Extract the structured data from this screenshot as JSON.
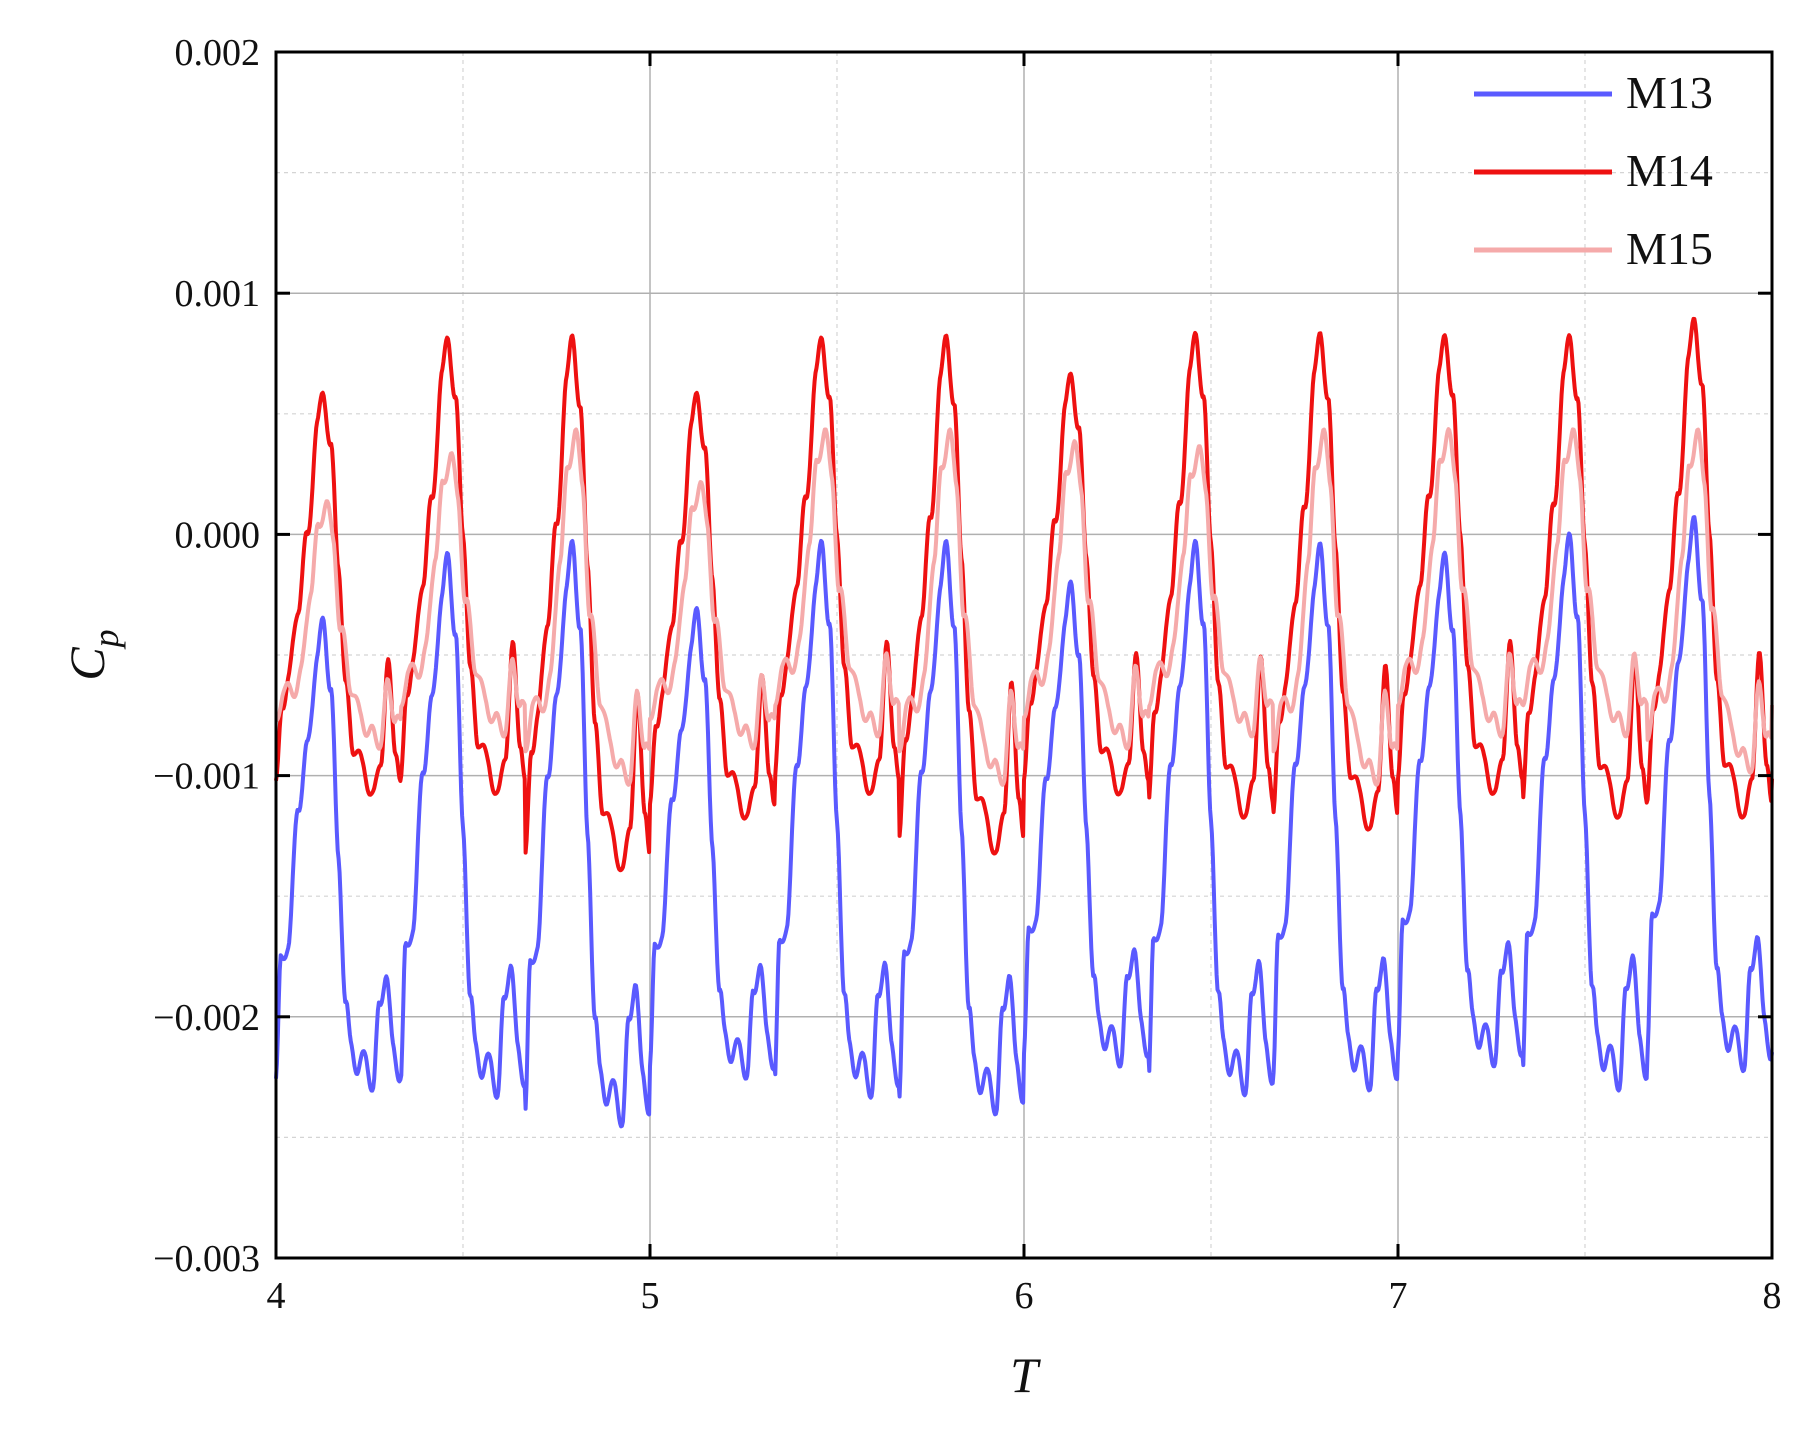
{
  "chart_data": {
    "type": "line",
    "xlabel": "T",
    "ylabel_main": "C",
    "ylabel_sub": "p",
    "xlim": [
      4,
      8
    ],
    "ylim": [
      -0.003,
      0.002
    ],
    "x_ticks": [
      4,
      5,
      6,
      7,
      8
    ],
    "x_tick_labels": [
      "4",
      "5",
      "6",
      "7",
      "8"
    ],
    "y_ticks": [
      -0.003,
      -0.002,
      -0.001,
      0.0,
      0.001,
      0.002
    ],
    "y_tick_labels": [
      "−0.003",
      "−0.002",
      "−0.001",
      "0.000",
      "0.001",
      "0.002"
    ],
    "grid": true,
    "legend_position": "top-right",
    "period": 0.3333,
    "series": [
      {
        "name": "M13",
        "color": "#5a5aff",
        "cycle_phase": [
          0.0,
          0.04,
          0.1,
          0.18,
          0.25,
          0.33,
          0.38,
          0.44,
          0.5,
          0.56,
          0.6,
          0.66,
          0.72,
          0.78,
          0.83,
          0.88,
          0.94,
          1.0
        ],
        "cycle_values": [
          -0.00225,
          -0.0017,
          -0.0016,
          -0.00095,
          -0.0007,
          -0.00025,
          -0.0001,
          -0.0004,
          -0.0012,
          -0.0019,
          -0.0021,
          -0.0022,
          -0.00215,
          -0.0023,
          -0.0019,
          -0.00175,
          -0.0021,
          -0.00225
        ],
        "peaks": [
          -0.00037,
          -0.0001,
          -5e-05,
          -0.00033,
          -5e-05,
          -5e-05,
          -0.00022,
          -5e-05,
          -6e-05,
          -0.0001,
          -2e-05,
          5e-05,
          -3e-05
        ],
        "troughs": [
          -0.0023,
          -0.00233,
          -0.00245,
          -0.00225,
          -0.00233,
          -0.0024,
          -0.0022,
          -0.00232,
          -0.0023,
          -0.0022,
          -0.0023,
          -0.00222,
          -0.0022
        ]
      },
      {
        "name": "M14",
        "color": "#ee1111",
        "cycle_phase": [
          0.0,
          0.05,
          0.1,
          0.18,
          0.25,
          0.33,
          0.38,
          0.44,
          0.5,
          0.56,
          0.62,
          0.7,
          0.78,
          0.84,
          0.9,
          0.96,
          1.0
        ],
        "cycle_values": [
          -0.00105,
          -0.00065,
          -0.00055,
          -0.0002,
          0.0001,
          0.0006,
          0.00078,
          0.0005,
          0.0,
          -0.0006,
          -0.00085,
          -0.00095,
          -0.0011,
          -0.0009,
          -0.0005,
          -0.00085,
          -0.00105
        ],
        "peaks": [
          0.0006,
          0.00083,
          0.00084,
          0.0006,
          0.00083,
          0.00084,
          0.00068,
          0.00085,
          0.00085,
          0.00084,
          0.00084,
          0.00091,
          0.00084
        ],
        "troughs": [
          -0.0011,
          -0.0011,
          -0.00142,
          -0.0012,
          -0.0011,
          -0.00135,
          -0.0011,
          -0.0012,
          -0.00125,
          -0.0011,
          -0.0012,
          -0.0012,
          -0.0011
        ]
      },
      {
        "name": "M15",
        "color": "#f5aaaa",
        "cycle_phase": [
          0.0,
          0.06,
          0.12,
          0.2,
          0.28,
          0.34,
          0.4,
          0.46,
          0.52,
          0.6,
          0.68,
          0.76,
          0.84,
          0.9,
          0.96,
          1.0
        ],
        "cycle_values": [
          -0.00075,
          -0.00055,
          -0.0006,
          -0.0005,
          -0.0001,
          0.00015,
          0.0003,
          0.0001,
          -0.0003,
          -0.00055,
          -0.0007,
          -0.00078,
          -0.0008,
          -0.00055,
          -0.0007,
          -0.00075
        ],
        "peaks": [
          0.00015,
          0.00035,
          0.00045,
          0.00023,
          0.00045,
          0.00045,
          0.0004,
          0.00038,
          0.00045,
          0.00045,
          0.00045,
          0.00045,
          0.00045
        ],
        "troughs": [
          -0.00085,
          -0.0008,
          -0.001,
          -0.00085,
          -0.0008,
          -0.001,
          -0.00085,
          -0.0008,
          -0.001,
          -0.0008,
          -0.0008,
          -0.00095,
          -0.0008
        ]
      }
    ]
  }
}
